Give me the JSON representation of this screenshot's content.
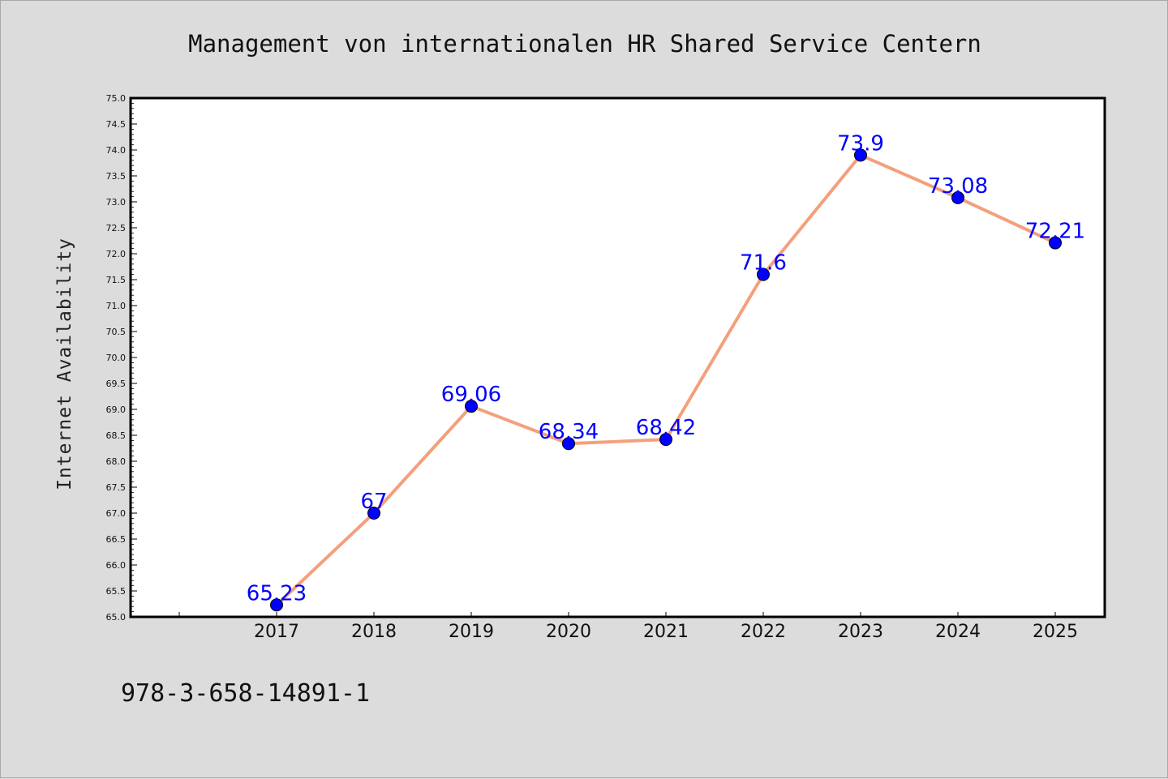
{
  "chart_data": {
    "type": "line",
    "title": "Management von internationalen HR Shared Service Centern",
    "xlabel": "",
    "ylabel": "Internet Availability",
    "categories": [
      "2017",
      "2018",
      "2019",
      "2020",
      "2021",
      "2022",
      "2023",
      "2024",
      "2025"
    ],
    "series": [
      {
        "values": [
          65.23,
          67,
          69.06,
          68.34,
          68.42,
          71.6,
          73.9,
          73.08,
          72.21
        ],
        "data_labels": [
          "65.23",
          "67",
          "69.06",
          "68.34",
          "68.42",
          "71.6",
          "73.9",
          "73.08",
          "72.21"
        ],
        "line_color": "#f4a07c",
        "marker_color": "#0000ff"
      }
    ],
    "ylim": [
      65.0,
      75.0
    ],
    "yticks": [
      "65.0",
      "65.5",
      "66.0",
      "66.5",
      "67.0",
      "67.5",
      "68.0",
      "68.5",
      "69.0",
      "69.5",
      "70.0",
      "70.5",
      "71.0",
      "71.5",
      "72.0",
      "72.5",
      "73.0",
      "73.5",
      "74.0",
      "74.5",
      "75.0"
    ],
    "grid": false,
    "legend": "none"
  },
  "footer": {
    "isbn": "978-3-658-14891-1"
  }
}
